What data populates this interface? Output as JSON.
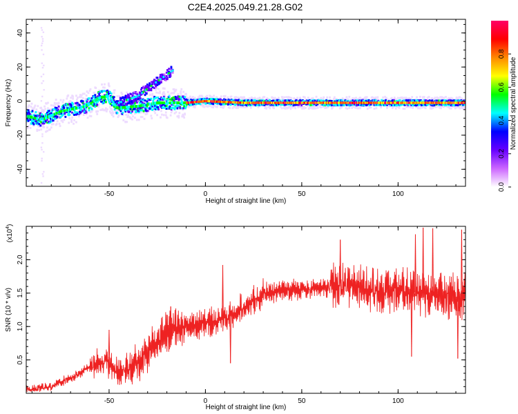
{
  "title": "C2E4.2025.049.21.28.G02",
  "colorbar": {
    "label": "Normalized spectral amplitude",
    "ticks": [
      "0.0",
      "0.2",
      "0.4",
      "0.6",
      "0.8"
    ],
    "tick_values": [
      0.0,
      0.2,
      0.4,
      0.6,
      0.8
    ],
    "range": [
      0,
      1
    ],
    "colors": [
      "#ffffff",
      "#cc66ff",
      "#6600ff",
      "#0000ff",
      "#00ffff",
      "#00ff00",
      "#ffff00",
      "#ff8800",
      "#ff0000",
      "#ff0066"
    ]
  },
  "chart_data": [
    {
      "type": "heatmap",
      "xlabel": "Height of straight line (km)",
      "ylabel": "Frequency (Hz)",
      "xlim": [
        -93,
        135
      ],
      "ylim": [
        -50,
        48
      ],
      "xticks": [
        -50,
        0,
        50,
        100
      ],
      "xtick_labels": [
        "-50",
        "0",
        "50",
        "100"
      ],
      "yticks": [
        -40,
        -20,
        0,
        20,
        40
      ],
      "ytick_labels": [
        "-40",
        "-20",
        "0",
        "20",
        "40"
      ],
      "ridge": [
        {
          "x": -92,
          "y": -9
        },
        {
          "x": -85,
          "y": -11
        },
        {
          "x": -75,
          "y": -6
        },
        {
          "x": -62,
          "y": -3
        },
        {
          "x": -55,
          "y": 2
        },
        {
          "x": -50,
          "y": 3
        },
        {
          "x": -46,
          "y": -4
        },
        {
          "x": -35,
          "y": -3
        },
        {
          "x": -25,
          "y": -1
        },
        {
          "x": -10,
          "y": -1
        },
        {
          "x": 0,
          "y": 0
        },
        {
          "x": 20,
          "y": -1
        },
        {
          "x": 50,
          "y": -1
        },
        {
          "x": 100,
          "y": -1
        },
        {
          "x": 134,
          "y": -1
        }
      ],
      "branch": [
        {
          "x": -45,
          "y": -1
        },
        {
          "x": -35,
          "y": 3
        },
        {
          "x": -27,
          "y": 10
        },
        {
          "x": -22,
          "y": 14
        },
        {
          "x": -17,
          "y": 18
        }
      ]
    },
    {
      "type": "line",
      "xlabel": "Height of straight line (km)",
      "ylabel": "SNR (10 * v/v)",
      "multiplier_label": "(x10",
      "multiplier_exp": "4",
      "multiplier_close": ")",
      "xlim": [
        -93,
        135
      ],
      "ylim": [
        0.0,
        2.5
      ],
      "xticks": [
        -50,
        0,
        50,
        100
      ],
      "xtick_labels": [
        "-50",
        "0",
        "50",
        "100"
      ],
      "yticks": [
        0.5,
        1.0,
        1.5,
        2.0
      ],
      "ytick_labels": [
        "0.5",
        "1.0",
        "1.5",
        "2.0"
      ],
      "line_color": "#ee2222",
      "trend": [
        {
          "x": -93,
          "y": 0.05
        },
        {
          "x": -80,
          "y": 0.1
        },
        {
          "x": -65,
          "y": 0.3
        },
        {
          "x": -52,
          "y": 0.5
        },
        {
          "x": -45,
          "y": 0.3
        },
        {
          "x": -35,
          "y": 0.45
        },
        {
          "x": -25,
          "y": 0.8
        },
        {
          "x": -15,
          "y": 0.95
        },
        {
          "x": 0,
          "y": 1.05
        },
        {
          "x": 10,
          "y": 1.1
        },
        {
          "x": 20,
          "y": 1.3
        },
        {
          "x": 30,
          "y": 1.5
        },
        {
          "x": 40,
          "y": 1.55
        },
        {
          "x": 55,
          "y": 1.55
        },
        {
          "x": 70,
          "y": 1.6
        },
        {
          "x": 85,
          "y": 1.55
        },
        {
          "x": 100,
          "y": 1.55
        },
        {
          "x": 110,
          "y": 1.5
        },
        {
          "x": 125,
          "y": 1.5
        },
        {
          "x": 134,
          "y": 1.45
        }
      ],
      "spikes": [
        {
          "x": -50,
          "y": 0.95
        },
        {
          "x": -18,
          "y": 1.3
        },
        {
          "x": 9,
          "y": 1.92
        },
        {
          "x": 70,
          "y": 2.3
        },
        {
          "x": 109,
          "y": 2.38
        },
        {
          "x": 113,
          "y": 2.48
        },
        {
          "x": 118,
          "y": 2.47
        },
        {
          "x": 133,
          "y": 2.45
        },
        {
          "x": 13,
          "y": 0.45
        },
        {
          "x": 107,
          "y": 0.55
        },
        {
          "x": 131,
          "y": 0.52
        }
      ]
    }
  ]
}
